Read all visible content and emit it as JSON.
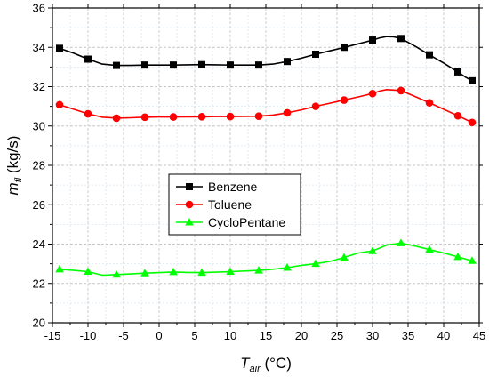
{
  "chart_data": {
    "type": "line",
    "title": "",
    "xlabel": {
      "main": "T",
      "sub": "air",
      "unit": " (°C)"
    },
    "ylabel": {
      "main": "m",
      "sub": "fl",
      "unit": " (kg/s)"
    },
    "xlim": [
      -15,
      45
    ],
    "ylim": [
      20,
      36
    ],
    "xticks": [
      -15,
      -10,
      -5,
      0,
      5,
      10,
      15,
      20,
      25,
      30,
      35,
      40,
      45
    ],
    "yticks": [
      20,
      22,
      24,
      26,
      28,
      30,
      32,
      34,
      36
    ],
    "grid": true,
    "legend_position": "center-left",
    "series": [
      {
        "name": "Benzene",
        "color": "#000000",
        "marker": "square",
        "x": [
          -14,
          -10,
          -6,
          -2,
          2,
          6,
          10,
          14,
          18,
          22,
          26,
          30,
          34,
          38,
          42,
          44
        ],
        "y": [
          33.95,
          33.4,
          33.08,
          33.1,
          33.1,
          33.12,
          33.1,
          33.1,
          33.28,
          33.65,
          34.0,
          34.37,
          34.45,
          33.62,
          32.75,
          32.3
        ],
        "curve_x": [
          -14,
          -12,
          -10,
          -8,
          -6,
          -4,
          -2,
          0,
          2,
          4,
          6,
          8,
          10,
          12,
          14,
          16,
          18,
          20,
          22,
          24,
          26,
          28,
          30,
          31,
          32,
          33,
          34,
          36,
          38,
          40,
          42,
          43,
          44
        ],
        "curve_y": [
          33.95,
          33.7,
          33.4,
          33.15,
          33.08,
          33.08,
          33.1,
          33.1,
          33.1,
          33.11,
          33.12,
          33.11,
          33.1,
          33.1,
          33.1,
          33.15,
          33.28,
          33.45,
          33.65,
          33.82,
          34.0,
          34.18,
          34.37,
          34.48,
          34.55,
          34.53,
          34.45,
          34.05,
          33.62,
          33.2,
          32.75,
          32.5,
          32.3
        ]
      },
      {
        "name": "Toluene",
        "color": "#ff0000",
        "marker": "circle",
        "x": [
          -14,
          -10,
          -6,
          -2,
          2,
          6,
          10,
          14,
          18,
          22,
          26,
          30,
          34,
          38,
          42,
          44
        ],
        "y": [
          31.08,
          30.62,
          30.4,
          30.45,
          30.46,
          30.47,
          30.48,
          30.5,
          30.67,
          31.0,
          31.32,
          31.65,
          31.8,
          31.18,
          30.52,
          30.18
        ],
        "curve_x": [
          -14,
          -12,
          -10,
          -8,
          -6,
          -4,
          -2,
          0,
          2,
          4,
          6,
          8,
          10,
          12,
          14,
          16,
          18,
          20,
          22,
          24,
          26,
          28,
          30,
          31,
          32,
          33,
          34,
          36,
          38,
          40,
          42,
          43,
          44
        ],
        "curve_y": [
          31.08,
          30.85,
          30.62,
          30.45,
          30.4,
          30.42,
          30.45,
          30.46,
          30.46,
          30.47,
          30.47,
          30.48,
          30.48,
          30.49,
          30.5,
          30.56,
          30.67,
          30.82,
          31.0,
          31.16,
          31.32,
          31.48,
          31.65,
          31.78,
          31.85,
          31.83,
          31.8,
          31.5,
          31.18,
          30.85,
          30.52,
          30.35,
          30.18
        ]
      },
      {
        "name": "CycloPentane",
        "color": "#00ff00",
        "marker": "triangle",
        "x": [
          -14,
          -10,
          -6,
          -2,
          2,
          6,
          10,
          14,
          18,
          22,
          26,
          30,
          34,
          38,
          42,
          44
        ],
        "y": [
          22.72,
          22.6,
          22.45,
          22.52,
          22.58,
          22.55,
          22.6,
          22.66,
          22.8,
          23.0,
          23.32,
          23.65,
          24.05,
          23.72,
          23.35,
          23.15
        ],
        "curve_x": [
          -14,
          -12,
          -10,
          -8,
          -6,
          -4,
          -2,
          0,
          2,
          4,
          6,
          8,
          10,
          12,
          14,
          16,
          18,
          20,
          22,
          24,
          26,
          28,
          30,
          32,
          34,
          36,
          38,
          40,
          42,
          43,
          44
        ],
        "curve_y": [
          22.72,
          22.66,
          22.6,
          22.42,
          22.45,
          22.48,
          22.52,
          22.55,
          22.58,
          22.56,
          22.55,
          22.57,
          22.6,
          22.63,
          22.66,
          22.72,
          22.8,
          22.92,
          23.0,
          23.12,
          23.32,
          23.55,
          23.65,
          23.95,
          24.05,
          23.9,
          23.72,
          23.55,
          23.35,
          23.25,
          23.15
        ]
      }
    ]
  }
}
